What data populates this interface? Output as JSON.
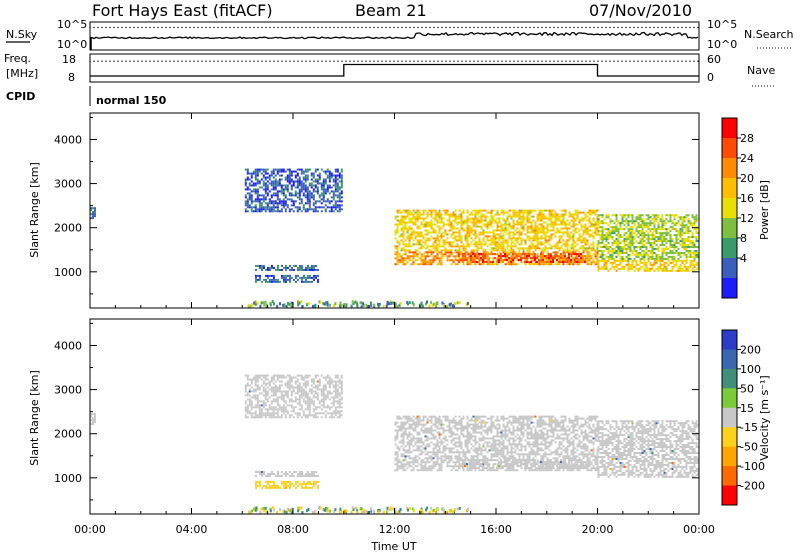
{
  "header": {
    "station": "Fort Hays East (fitACF)",
    "beam": "Beam 21",
    "date": "07/Nov/2010"
  },
  "noise_panel": {
    "left_label": "N.Sky",
    "right_label": "N.Search",
    "left_ticks": [
      "10^5",
      "10^0"
    ],
    "right_ticks": [
      "10^5",
      "10^0"
    ]
  },
  "freq_panel": {
    "left_label_1": "Freq.",
    "left_label_2": "[MHz]",
    "right_label": "Nave",
    "left_ticks": [
      "18",
      "8"
    ],
    "right_ticks": [
      "60",
      "0"
    ]
  },
  "cpid": {
    "label": "CPID",
    "program": "normal 150"
  },
  "axis": {
    "xlabel": "Time UT",
    "ylabel": "Slant Range [km]",
    "x_ticks": [
      "00:00",
      "04:00",
      "08:00",
      "12:00",
      "16:00",
      "20:00",
      "00:00"
    ],
    "y_ticks": [
      "1000",
      "2000",
      "3000",
      "4000"
    ]
  },
  "power_colorbar": {
    "label": "Power [dB]",
    "ticks": [
      "28",
      "24",
      "20",
      "16",
      "12",
      "8",
      "4"
    ],
    "colors": [
      "#ff0000",
      "#ff4a00",
      "#ff8c00",
      "#ffbf00",
      "#e8e000",
      "#7fbf3f",
      "#3a9a6a",
      "#3a5fbf",
      "#1c1cff"
    ]
  },
  "velocity_colorbar": {
    "label": "Velocity [m s⁻¹]",
    "ticks": [
      "200",
      "100",
      "50",
      "15",
      "-15",
      "-50",
      "-100",
      "-200"
    ],
    "colors": [
      "#2a3cc8",
      "#3a68b0",
      "#3f8f7a",
      "#7acc3a",
      "#c8c8c8",
      "#ffd21a",
      "#ffa500",
      "#ff6a00",
      "#ff0000"
    ]
  },
  "chart_data": [
    {
      "type": "heatmap",
      "title": "Power",
      "xlabel": "Time UT",
      "ylabel": "Slant Range [km]",
      "x_range_hours": [
        0,
        24
      ],
      "y_range_km": [
        180,
        4600
      ],
      "colorbar": {
        "label": "Power [dB]",
        "range": [
          0,
          32
        ]
      },
      "echo_regions": [
        {
          "t_start": 0.0,
          "t_end": 0.2,
          "r_min": 2150,
          "r_max": 2450,
          "power": 6
        },
        {
          "t_start": 6.1,
          "t_end": 9.9,
          "r_min": 2350,
          "r_max": 3300,
          "power": 5
        },
        {
          "t_start": 6.5,
          "t_end": 9.0,
          "r_min": 750,
          "r_max": 900,
          "power": 6
        },
        {
          "t_start": 6.5,
          "t_end": 9.0,
          "r_min": 1020,
          "r_max": 1120,
          "power": 6
        },
        {
          "t_start": 12.0,
          "t_end": 20.0,
          "r_min": 1150,
          "r_max": 2400,
          "power": 18
        },
        {
          "t_start": 14.5,
          "t_end": 19.5,
          "r_min": 1200,
          "r_max": 1420,
          "power": 26
        },
        {
          "t_start": 20.0,
          "t_end": 24.0,
          "r_min": 1000,
          "r_max": 2300,
          "power": 14
        }
      ]
    },
    {
      "type": "heatmap",
      "title": "Velocity",
      "xlabel": "Time UT",
      "ylabel": "Slant Range [km]",
      "x_range_hours": [
        0,
        24
      ],
      "y_range_km": [
        180,
        4600
      ],
      "colorbar": {
        "label": "Velocity [m s⁻¹]",
        "range": [
          -200,
          200
        ]
      },
      "echo_regions": [
        {
          "t_start": 0.0,
          "t_end": 0.2,
          "r_min": 2150,
          "r_max": 2450,
          "velocity": 0
        },
        {
          "t_start": 6.1,
          "t_end": 9.9,
          "r_min": 2350,
          "r_max": 3300,
          "velocity": 0
        },
        {
          "t_start": 6.5,
          "t_end": 9.0,
          "r_min": 750,
          "r_max": 900,
          "velocity": -40
        },
        {
          "t_start": 12.0,
          "t_end": 20.0,
          "r_min": 1150,
          "r_max": 2400,
          "velocity": 0
        },
        {
          "t_start": 20.0,
          "t_end": 24.0,
          "r_min": 1000,
          "r_max": 2300,
          "velocity": 0
        }
      ]
    },
    {
      "type": "line",
      "title": "Frequency / Nave",
      "series": [
        {
          "name": "Freq.",
          "x_hours": [
            0,
            10,
            10,
            20,
            20,
            24
          ],
          "values": [
            10.5,
            10.5,
            15.3,
            15.3,
            10.5,
            10.5
          ]
        },
        {
          "name": "Nave",
          "x_hours": [
            0,
            24
          ],
          "values": [
            52,
            52
          ]
        }
      ]
    }
  ]
}
